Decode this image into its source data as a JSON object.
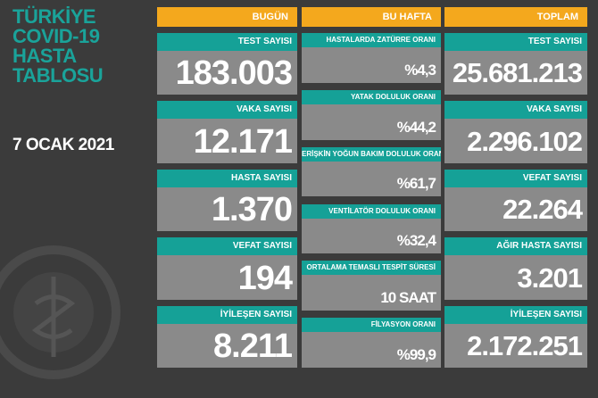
{
  "header": {
    "title_lines": [
      "TÜRKİYE",
      "COVID-19",
      "HASTA",
      "TABLOSU"
    ],
    "date": "7 OCAK 2021"
  },
  "columns": [
    {
      "title": "BUGÜN",
      "cards": [
        {
          "label": "TEST SAYISI",
          "value": "183.003"
        },
        {
          "label": "VAKA SAYISI",
          "value": "12.171"
        },
        {
          "label": "HASTA SAYISI",
          "value": "1.370"
        },
        {
          "label": "VEFAT SAYISI",
          "value": "194"
        },
        {
          "label": "İYİLEŞEN SAYISI",
          "value": "8.211"
        }
      ]
    },
    {
      "title": "BU HAFTA",
      "cards": [
        {
          "label": "HASTALARDA ZATÜRRE ORANI",
          "value": "%4,3"
        },
        {
          "label": "YATAK DOLULUK ORANI",
          "value": "%44,2"
        },
        {
          "label": "ERİŞKİN YOĞUN BAKIM DOLULUK ORANI",
          "value": "%61,7"
        },
        {
          "label": "VENTİLATÖR DOLULUK ORANI",
          "value": "%32,4"
        },
        {
          "label": "ORTALAMA TEMASLI TESPİT SÜRESİ",
          "value": "10 SAAT"
        },
        {
          "label": "FİLYASYON ORANI",
          "value": "%99,9"
        }
      ]
    },
    {
      "title": "TOPLAM",
      "cards": [
        {
          "label": "TEST SAYISI",
          "value": "25.681.213"
        },
        {
          "label": "VAKA SAYISI",
          "value": "2.296.102"
        },
        {
          "label": "VEFAT SAYISI",
          "value": "22.264"
        },
        {
          "label": "AĞIR HASTA SAYISI",
          "value": "3.201"
        },
        {
          "label": "İYİLEŞEN SAYISI",
          "value": "2.172.251"
        }
      ]
    }
  ]
}
